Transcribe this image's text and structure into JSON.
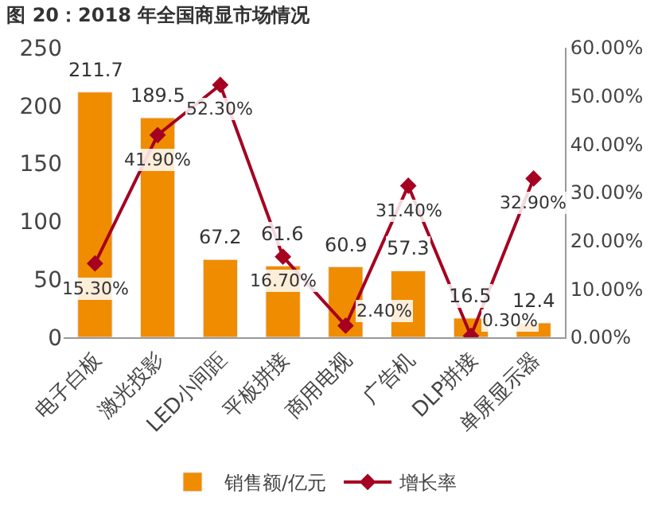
{
  "chart_data": {
    "type": "bar",
    "title": "图 20：2018 年全国商显市场情况",
    "categories": [
      "电子白板",
      "激光投影",
      "LED小间距",
      "平板拼接",
      "商用电视",
      "广告机",
      "DLP拼接",
      "单屏显示器"
    ],
    "series": [
      {
        "name": "销售额/亿元",
        "color": "#f08c00",
        "values": [
          211.7,
          189.5,
          67.2,
          61.6,
          60.9,
          57.3,
          16.5,
          12.4
        ],
        "value_labels": [
          "211.7",
          "189.5",
          "67.2",
          "61.6",
          "60.9",
          "57.3",
          "16.5",
          "12.4"
        ]
      },
      {
        "name": "增长率",
        "type": "line",
        "axis": "y2",
        "color": "#a50021",
        "marker": "diamond",
        "values": [
          15.3,
          41.9,
          52.3,
          16.7,
          2.4,
          31.4,
          0.3,
          32.9
        ],
        "value_labels": [
          "15.30%",
          "41.90%",
          "52.30%",
          "16.70%",
          "2.40%",
          "31.40%",
          "0.30%",
          "32.90%"
        ]
      }
    ],
    "ylim": [
      0,
      250
    ],
    "yticks": [
      0,
      50,
      100,
      150,
      200,
      250
    ],
    "y2lim": [
      0,
      60
    ],
    "y2ticks": [
      {
        "value": 0,
        "label": "0.00%"
      },
      {
        "value": 10,
        "label": "10.00%"
      },
      {
        "value": 20,
        "label": "20.00%"
      },
      {
        "value": 30,
        "label": "30.00%"
      },
      {
        "value": 40,
        "label": "40.00%"
      },
      {
        "value": 50,
        "label": "50.00%"
      },
      {
        "value": 60,
        "label": "60.00%"
      }
    ],
    "legend": "bottom"
  }
}
